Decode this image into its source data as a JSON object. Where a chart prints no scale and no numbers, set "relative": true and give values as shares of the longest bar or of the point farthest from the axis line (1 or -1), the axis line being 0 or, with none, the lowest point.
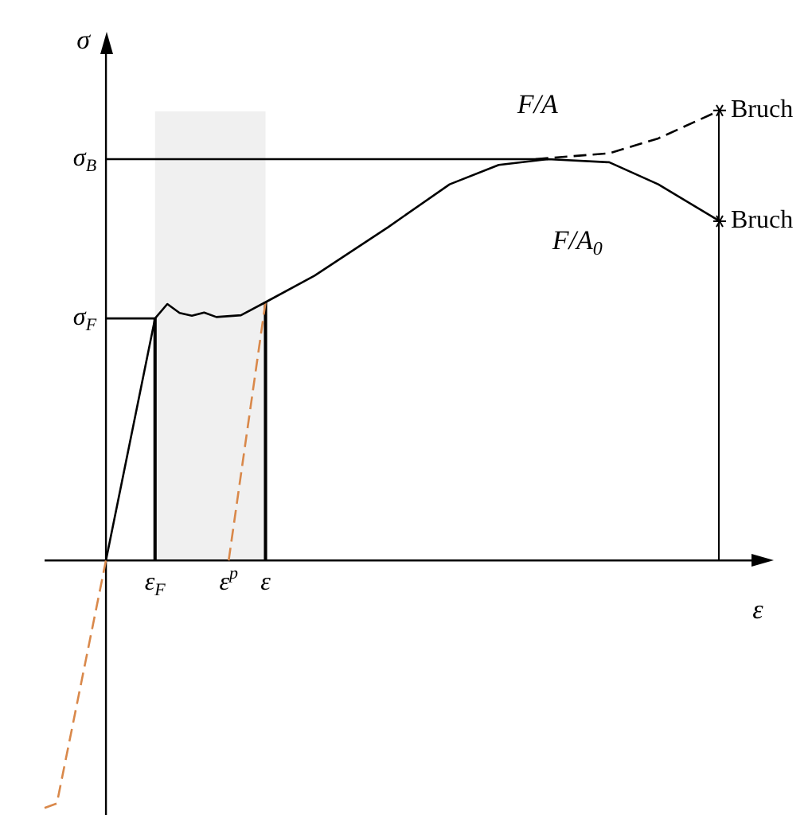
{
  "chart_data": {
    "type": "line",
    "relative": true,
    "xlabel": "ε",
    "ylabel": "σ",
    "marker": "none",
    "categories": [
      null,
      null,
      null,
      null,
      null,
      null,
      null,
      null,
      null,
      "ε$_{F}$",
      null,
      null,
      null,
      null,
      null,
      "ε$^{p}$",
      null,
      null,
      "ε",
      null,
      null,
      null,
      null,
      null,
      null,
      null,
      null,
      null,
      null,
      null,
      null,
      null,
      null,
      null,
      null,
      null,
      null,
      null,
      null,
      null,
      null,
      null,
      null,
      null,
      null,
      null,
      null,
      null,
      null,
      null,
      null,
      null,
      null,
      null,
      null,
      null
    ],
    "bands": [
      {
        "axis": "x",
        "from": "ε$_{F}$",
        "to": "ε",
        "color": "#f0f0f0"
      }
    ],
    "ref_lines": [
      {
        "axis": "y",
        "value": 0.538,
        "label": "σ$_{F}$"
      },
      {
        "axis": "y",
        "value": 0.892,
        "label": "σ$_{B}$"
      }
    ],
    "annotations": [
      "Bruch",
      "Bruch"
    ],
    "series": [
      {
        "name": "F/A$_{0}$",
        "color": "#000000",
        "line_style": "solid",
        "values": [
          null,
          null,
          null,
          null,
          null,
          0,
          null,
          null,
          null,
          0.538,
          0.57,
          0.55,
          0.544,
          0.551,
          0.541,
          null,
          0.545,
          null,
          0.574,
          null,
          null,
          null,
          0.633,
          null,
          null,
          null,
          null,
          null,
          0.741,
          null,
          null,
          null,
          null,
          0.836,
          null,
          null,
          null,
          0.879,
          null,
          null,
          null,
          0.892,
          null,
          null,
          null,
          null,
          0.885,
          null,
          null,
          null,
          0.836,
          null,
          null,
          null,
          null,
          0.754
        ]
      },
      {
        "name": "F/A",
        "color": "#000000",
        "line_style": "dashed",
        "values": [
          null,
          null,
          null,
          null,
          null,
          null,
          null,
          null,
          null,
          null,
          null,
          null,
          null,
          null,
          null,
          null,
          null,
          null,
          null,
          null,
          null,
          null,
          null,
          null,
          null,
          null,
          null,
          null,
          null,
          null,
          null,
          null,
          null,
          null,
          null,
          null,
          null,
          null,
          null,
          null,
          0.892,
          null,
          null,
          null,
          null,
          null,
          0.905,
          null,
          null,
          null,
          0.938,
          null,
          null,
          null,
          null,
          1
        ]
      },
      {
        "color": "#d9884a",
        "line_style": "dashed",
        "values": [
          -0.55,
          -0.54,
          null,
          null,
          null,
          0,
          null,
          null,
          null,
          null,
          null,
          null,
          null,
          null,
          null,
          null,
          null,
          null,
          null,
          null,
          null,
          null,
          null,
          null,
          null,
          null,
          null,
          null,
          null,
          null,
          null,
          null,
          null,
          null,
          null,
          null,
          null,
          null,
          null,
          null,
          null,
          null,
          null,
          null,
          null,
          null,
          null,
          null,
          null,
          null,
          null,
          null,
          null,
          null,
          null,
          null
        ]
      },
      {
        "color": "#d9884a",
        "line_style": "dashed",
        "values": [
          null,
          null,
          null,
          null,
          null,
          null,
          null,
          null,
          null,
          null,
          null,
          null,
          null,
          null,
          null,
          0,
          null,
          null,
          0.574,
          null,
          null,
          null,
          null,
          null,
          null,
          null,
          null,
          null,
          null,
          null,
          null,
          null,
          null,
          null,
          null,
          null,
          null,
          null,
          null,
          null,
          null,
          null,
          null,
          null,
          null,
          null,
          null,
          null,
          null,
          null,
          null,
          null,
          null,
          null,
          null,
          null
        ]
      },
      {
        "type": "bar",
        "color": "#000000",
        "values": [
          null,
          null,
          null,
          null,
          null,
          null,
          null,
          null,
          null,
          0.538,
          null,
          null,
          null,
          null,
          null,
          null,
          null,
          null,
          0.574,
          null,
          null,
          null,
          null,
          null,
          null,
          null,
          null,
          null,
          null,
          null,
          null,
          null,
          null,
          null,
          null,
          null,
          null,
          null,
          null,
          null,
          null,
          null,
          null,
          null,
          null,
          null,
          null,
          null,
          null,
          null,
          null,
          null,
          null,
          null,
          null,
          1
        ]
      }
    ]
  }
}
